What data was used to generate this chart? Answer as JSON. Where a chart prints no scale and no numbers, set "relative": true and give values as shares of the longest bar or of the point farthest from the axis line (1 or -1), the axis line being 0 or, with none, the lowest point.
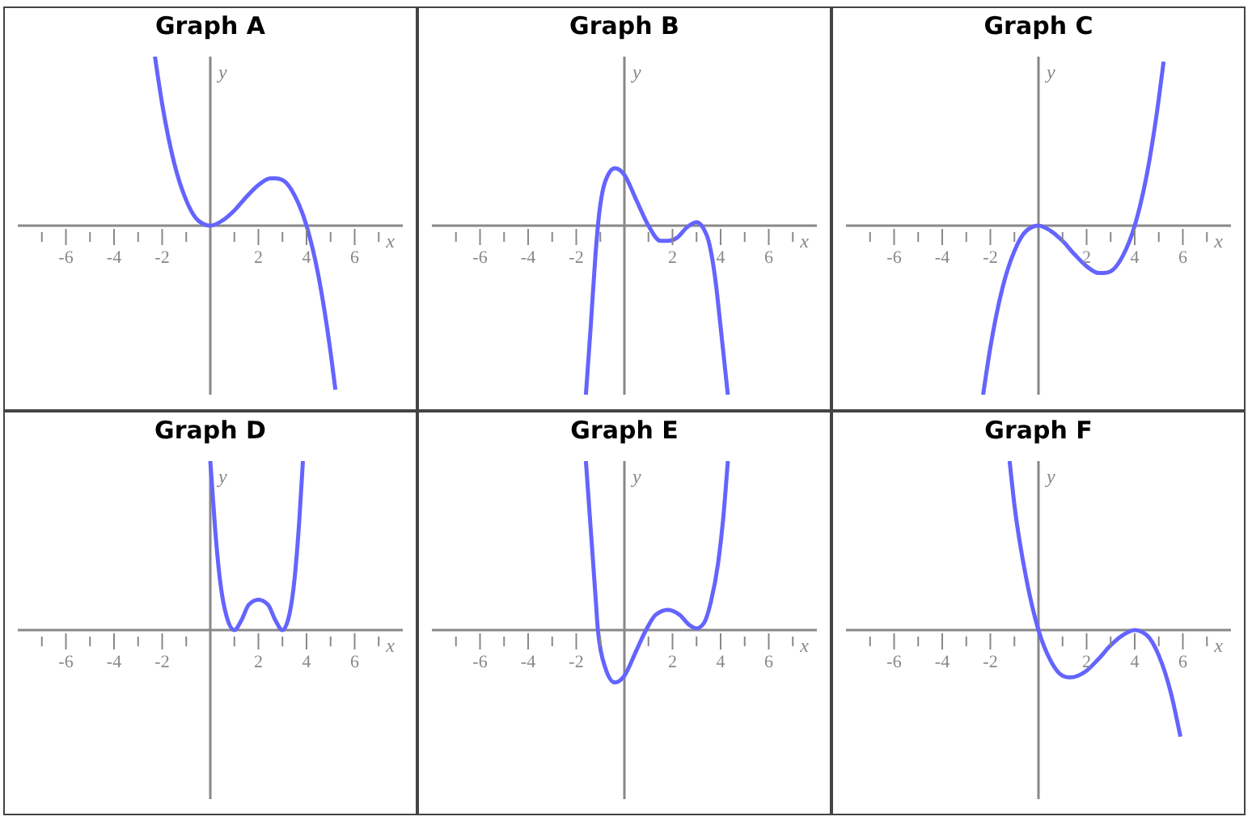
{
  "chart_data": [
    {
      "type": "line",
      "title": "Graph A",
      "xlabel": "x",
      "ylabel": "y",
      "relative": true,
      "color": "#6464ff",
      "marker": "none",
      "grid": false,
      "xlim": [
        -8,
        8
      ],
      "xticks": [
        {
          "value": -7,
          "label": null
        },
        -6,
        {
          "value": -5,
          "label": null
        },
        -4,
        {
          "value": -3,
          "label": null
        },
        -2,
        {
          "value": -1,
          "label": null
        },
        {
          "value": 1,
          "label": null
        },
        2,
        {
          "value": 3,
          "label": null
        },
        4,
        {
          "value": 5,
          "label": null
        },
        6,
        {
          "value": 7,
          "label": null
        }
      ],
      "x": [
        -2.3,
        -2,
        -1.5,
        -1,
        -0.5,
        0,
        0.5,
        1,
        1.5,
        2,
        2.5,
        2.7,
        3,
        3.5,
        4,
        4.5,
        5,
        5.2
      ],
      "values": [
        1,
        0.72,
        0.37,
        0.15,
        0.03,
        0,
        0.03,
        0.09,
        0.17,
        0.24,
        0.28,
        0.28,
        0.27,
        0.18,
        0,
        -0.3,
        -0.75,
        -0.97
      ]
    },
    {
      "type": "line",
      "title": "Graph B",
      "xlabel": "x",
      "ylabel": "y",
      "relative": true,
      "color": "#6464ff",
      "marker": "none",
      "grid": false,
      "xlim": [
        -8,
        8
      ],
      "xticks": [
        {
          "value": -7,
          "label": null
        },
        -6,
        {
          "value": -5,
          "label": null
        },
        -4,
        {
          "value": -3,
          "label": null
        },
        -2,
        {
          "value": -1,
          "label": null
        },
        {
          "value": 1,
          "label": null
        },
        2,
        {
          "value": 3,
          "label": null
        },
        4,
        {
          "value": 5,
          "label": null
        },
        6,
        {
          "value": 7,
          "label": null
        }
      ],
      "x": [
        -1.6,
        -1.4,
        -1.2,
        -1.1,
        -0.8,
        -0.4,
        0,
        0.5,
        1,
        1.5,
        1.8,
        2.2,
        2.6,
        3,
        3.3,
        3.5,
        3.8,
        4,
        4.3
      ],
      "values": [
        -1,
        -0.6,
        -0.17,
        0,
        0.26,
        0.34,
        0.3,
        0.15,
        0,
        -0.09,
        -0.09,
        -0.07,
        -0.01,
        0.02,
        -0.02,
        -0.09,
        -0.34,
        -0.6,
        -1
      ]
    },
    {
      "type": "line",
      "title": "Graph C",
      "xlabel": "x",
      "ylabel": "y",
      "relative": true,
      "color": "#6464ff",
      "marker": "none",
      "grid": false,
      "xlim": [
        -8,
        8
      ],
      "xticks": [
        {
          "value": -7,
          "label": null
        },
        -6,
        {
          "value": -5,
          "label": null
        },
        -4,
        {
          "value": -3,
          "label": null
        },
        -2,
        {
          "value": -1,
          "label": null
        },
        {
          "value": 1,
          "label": null
        },
        2,
        {
          "value": 3,
          "label": null
        },
        4,
        {
          "value": 5,
          "label": null
        },
        6,
        {
          "value": 7,
          "label": null
        }
      ],
      "x": [
        -2.3,
        -2,
        -1.5,
        -1,
        -0.5,
        0,
        0.5,
        1,
        1.5,
        2,
        2.5,
        2.7,
        3,
        3.5,
        4,
        4.5,
        5,
        5.2
      ],
      "values": [
        -1,
        -0.72,
        -0.37,
        -0.15,
        -0.03,
        0,
        -0.03,
        -0.09,
        -0.17,
        -0.24,
        -0.28,
        -0.28,
        -0.27,
        -0.18,
        0,
        0.3,
        0.75,
        0.97
      ]
    },
    {
      "type": "line",
      "title": "Graph D",
      "xlabel": "x",
      "ylabel": "y",
      "relative": true,
      "color": "#6464ff",
      "marker": "none",
      "grid": false,
      "xlim": [
        -8,
        8
      ],
      "xticks": [
        {
          "value": -7,
          "label": null
        },
        -6,
        {
          "value": -5,
          "label": null
        },
        -4,
        {
          "value": -3,
          "label": null
        },
        -2,
        {
          "value": -1,
          "label": null
        },
        {
          "value": 1,
          "label": null
        },
        2,
        {
          "value": 3,
          "label": null
        },
        4,
        {
          "value": 5,
          "label": null
        },
        6,
        {
          "value": 7,
          "label": null
        }
      ],
      "x": [
        0,
        0.2,
        0.4,
        0.7,
        1,
        1.3,
        1.6,
        2,
        2.4,
        2.7,
        3,
        3.3,
        3.5,
        3.7,
        3.85
      ],
      "values": [
        1,
        0.6,
        0.3,
        0.07,
        0,
        0.06,
        0.15,
        0.18,
        0.15,
        0.06,
        0,
        0.1,
        0.3,
        0.65,
        1
      ]
    },
    {
      "type": "line",
      "title": "Graph E",
      "xlabel": "x",
      "ylabel": "y",
      "relative": true,
      "color": "#6464ff",
      "marker": "none",
      "grid": false,
      "xlim": [
        -8,
        8
      ],
      "xticks": [
        {
          "value": -7,
          "label": null
        },
        -6,
        {
          "value": -5,
          "label": null
        },
        -4,
        {
          "value": -3,
          "label": null
        },
        -2,
        {
          "value": -1,
          "label": null
        },
        {
          "value": 1,
          "label": null
        },
        2,
        {
          "value": 3,
          "label": null
        },
        4,
        {
          "value": 5,
          "label": null
        },
        6,
        {
          "value": 7,
          "label": null
        }
      ],
      "x": [
        -1.6,
        -1.4,
        -1.2,
        -1.1,
        -0.8,
        -0.4,
        0,
        0.5,
        0.9,
        1.3,
        1.8,
        2.3,
        2.7,
        3,
        3.3,
        3.6,
        3.9,
        4.1,
        4.3
      ],
      "values": [
        1,
        0.6,
        0.2,
        0,
        -0.22,
        -0.31,
        -0.27,
        -0.12,
        0,
        0.09,
        0.12,
        0.09,
        0.03,
        0.01,
        0.04,
        0.17,
        0.4,
        0.65,
        1
      ]
    },
    {
      "type": "line",
      "title": "Graph F",
      "xlabel": "x",
      "ylabel": "y",
      "relative": true,
      "color": "#6464ff",
      "marker": "none",
      "grid": false,
      "xlim": [
        -8,
        8
      ],
      "xticks": [
        {
          "value": -7,
          "label": null
        },
        -6,
        {
          "value": -5,
          "label": null
        },
        -4,
        {
          "value": -3,
          "label": null
        },
        -2,
        {
          "value": -1,
          "label": null
        },
        {
          "value": 1,
          "label": null
        },
        2,
        {
          "value": 3,
          "label": null
        },
        4,
        {
          "value": 5,
          "label": null
        },
        6,
        {
          "value": 7,
          "label": null
        }
      ],
      "x": [
        -1.2,
        -1,
        -0.5,
        0,
        0.5,
        1,
        1.3,
        2,
        2.5,
        3,
        3.5,
        4,
        4.5,
        5,
        5.5,
        5.9
      ],
      "values": [
        1,
        0.74,
        0.3,
        0,
        -0.18,
        -0.27,
        -0.28,
        -0.24,
        -0.17,
        -0.09,
        -0.03,
        0,
        -0.03,
        -0.15,
        -0.37,
        -0.63
      ]
    }
  ]
}
